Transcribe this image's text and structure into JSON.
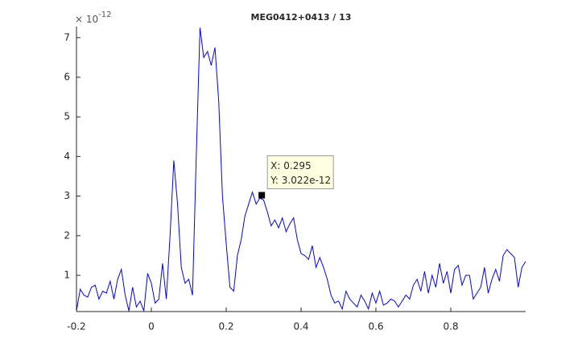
{
  "chart_data": {
    "type": "line",
    "title": "MEG0412+0413 / 13",
    "y_multiplier": {
      "base": "× 10",
      "exponent": "-12"
    },
    "x": [
      -0.2,
      -0.19,
      -0.18,
      -0.17,
      -0.16,
      -0.15,
      -0.14,
      -0.13,
      -0.12,
      -0.11,
      -0.1,
      -0.09,
      -0.08,
      -0.07,
      -0.06,
      -0.05,
      -0.04,
      -0.03,
      -0.02,
      -0.01,
      0,
      0.01,
      0.02,
      0.03,
      0.04,
      0.05,
      0.06,
      0.07,
      0.08,
      0.09,
      0.1,
      0.11,
      0.12,
      0.13,
      0.14,
      0.15,
      0.16,
      0.17,
      0.18,
      0.19,
      0.2,
      0.21,
      0.22,
      0.23,
      0.24,
      0.25,
      0.26,
      0.27,
      0.28,
      0.29,
      0.3,
      0.31,
      0.32,
      0.33,
      0.34,
      0.35,
      0.36,
      0.37,
      0.38,
      0.39,
      0.4,
      0.41,
      0.42,
      0.43,
      0.44,
      0.45,
      0.46,
      0.47,
      0.48,
      0.49,
      0.5,
      0.51,
      0.52,
      0.53,
      0.54,
      0.55,
      0.56,
      0.57,
      0.58,
      0.59,
      0.6,
      0.61,
      0.62,
      0.63,
      0.64,
      0.65,
      0.66,
      0.67,
      0.68,
      0.69,
      0.7,
      0.71,
      0.72,
      0.73,
      0.74,
      0.75,
      0.76,
      0.77,
      0.78,
      0.79,
      0.8,
      0.81,
      0.82,
      0.83,
      0.84,
      0.85,
      0.86,
      0.87,
      0.88,
      0.89,
      0.9,
      0.91,
      0.92,
      0.93,
      0.94,
      0.95,
      0.96,
      0.97,
      0.98,
      0.99,
      1.0
    ],
    "series": [
      {
        "color": "#0000ff",
        "values": [
          0.1,
          0.65,
          0.5,
          0.45,
          0.7,
          0.75,
          0.4,
          0.6,
          0.55,
          0.85,
          0.4,
          0.9,
          1.15,
          0.5,
          0.1,
          0.7,
          0.2,
          0.35,
          0.1,
          1.05,
          0.8,
          0.3,
          0.4,
          1.3,
          0.4,
          2.0,
          3.9,
          2.8,
          1.2,
          0.8,
          0.9,
          0.5,
          4.0,
          7.25,
          6.5,
          6.65,
          6.3,
          6.75,
          5.4,
          3.0,
          1.8,
          0.7,
          0.6,
          1.5,
          1.9,
          2.5,
          2.8,
          3.1,
          2.8,
          2.95,
          2.9,
          2.6,
          2.25,
          2.4,
          2.2,
          2.45,
          2.1,
          2.3,
          2.45,
          1.9,
          1.55,
          1.5,
          1.4,
          1.75,
          1.2,
          1.45,
          1.2,
          0.9,
          0.5,
          0.3,
          0.35,
          0.15,
          0.6,
          0.4,
          0.3,
          0.2,
          0.5,
          0.35,
          0.15,
          0.55,
          0.3,
          0.6,
          0.25,
          0.3,
          0.4,
          0.35,
          0.2,
          0.35,
          0.5,
          0.4,
          0.75,
          0.9,
          0.6,
          1.1,
          0.55,
          1.0,
          0.7,
          1.3,
          0.8,
          1.1,
          0.55,
          1.15,
          1.25,
          0.75,
          1.0,
          1.0,
          0.4,
          0.55,
          0.7,
          1.2,
          0.55,
          0.9,
          1.15,
          0.85,
          1.5,
          1.65,
          1.55,
          1.45,
          0.7,
          1.2,
          1.35
        ]
      }
    ],
    "xlim": [
      -0.2,
      1.0
    ],
    "ylim": [
      0.085,
      7.28
    ],
    "xticks": [
      -0.2,
      0,
      0.2,
      0.4,
      0.6,
      0.8
    ],
    "yticks": [
      1,
      2,
      3,
      4,
      5,
      6,
      7
    ],
    "datatip": {
      "x": 0.295,
      "y": 3.022,
      "x_label": "X: 0.295",
      "y_label": "Y: 3.022e-12"
    }
  }
}
